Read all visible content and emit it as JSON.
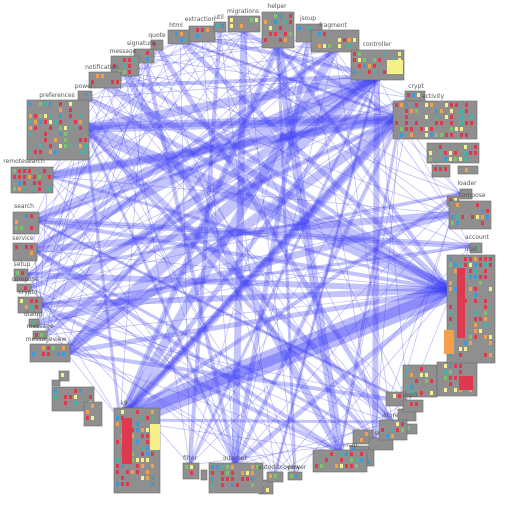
{
  "diagram": {
    "type": "circular-dependency-graph",
    "colors": {
      "edge": "#3a3af5",
      "node_bg": "#8f8f8f",
      "node_border": "#6a6a6a",
      "label": "#555555",
      "cell_red": "#e0394f",
      "cell_orange": "#f2a04c",
      "cell_yellow": "#f5f08a",
      "cell_blue": "#3a9bd8",
      "cell_teal": "#45b3a8",
      "cell_green": "#7cc46b"
    },
    "nodes": [
      {
        "id": "html",
        "label": "html"
      },
      {
        "id": "extraction",
        "label": "extraction"
      },
      {
        "id": "util",
        "label": "util"
      },
      {
        "id": "migrations",
        "label": "migrations"
      },
      {
        "id": "helper",
        "label": "helper"
      },
      {
        "id": "jsoup",
        "label": "jsoup"
      },
      {
        "id": "fragment",
        "label": "fragment"
      },
      {
        "id": "controller",
        "label": "controller"
      },
      {
        "id": "quote",
        "label": "quote"
      },
      {
        "id": "signature",
        "label": "signature"
      },
      {
        "id": "message",
        "label": "message"
      },
      {
        "id": "notification",
        "label": "notification"
      },
      {
        "id": "power",
        "label": "power"
      },
      {
        "id": "preferences",
        "label": "preferences"
      },
      {
        "id": "crypt",
        "label": "crypt"
      },
      {
        "id": "activity",
        "label": "activity"
      },
      {
        "id": "remotesearch",
        "label": "remotesearch"
      },
      {
        "id": "search",
        "label": "search"
      },
      {
        "id": "service",
        "label": "service"
      },
      {
        "id": "setup",
        "label": "setup"
      },
      {
        "id": "compose_left",
        "label": "compose"
      },
      {
        "id": "crypto",
        "label": "crypto"
      },
      {
        "id": "dialog",
        "label": "dialog"
      },
      {
        "id": "message_left",
        "label": "message"
      },
      {
        "id": "messageview",
        "label": "messageview"
      },
      {
        "id": "loader",
        "label": "loader"
      },
      {
        "id": "compose_right",
        "label": "compose"
      },
      {
        "id": "account",
        "label": "account"
      },
      {
        "id": "mail",
        "label": "mail"
      },
      {
        "id": "k9",
        "label": "k9"
      },
      {
        "id": "filter",
        "label": "filter"
      },
      {
        "id": "internet",
        "label": "internet"
      },
      {
        "id": "autodiscovery",
        "label": "autodiscovery"
      },
      {
        "id": "power_bottom",
        "label": "power"
      },
      {
        "id": "imap",
        "label": "imap"
      },
      {
        "id": "smtp",
        "label": "smtp"
      },
      {
        "id": "store",
        "label": "store"
      },
      {
        "id": "pop3",
        "label": "pop3"
      }
    ]
  }
}
